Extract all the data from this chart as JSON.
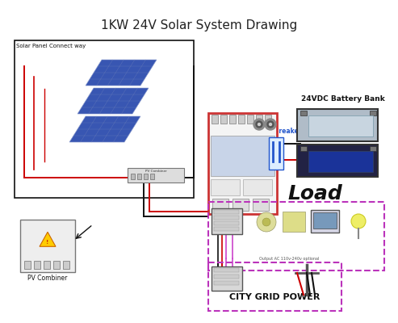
{
  "title": "1KW 24V Solar System Drawing",
  "title_fontsize": 11,
  "bg_color": "#ffffff",
  "labels": {
    "solar_panel_connect": "Solar Panel Connect way",
    "pv_combiner": "PV Combiner",
    "battery_bank": "24VDC Battery Bank",
    "breaker": "2P Breaker",
    "load": "Load",
    "output_ac": "Output AC 110v-240v optional",
    "city_grid": "CITY GRID POWER"
  },
  "colors": {
    "red_wire": "#cc0000",
    "black_wire": "#111111",
    "blue_wire": "#3355cc",
    "pink_wire": "#cc44cc",
    "inverter_border": "#cc3333",
    "panel_blue": "#2244aa",
    "battery_top": "#aabbcc",
    "battery_bot": "#1a2d88",
    "load_dashed": "#bb33bb",
    "grid_dashed": "#bb33bb",
    "breaker_blue": "#2255cc",
    "gray_box": "#e0e0e0"
  }
}
